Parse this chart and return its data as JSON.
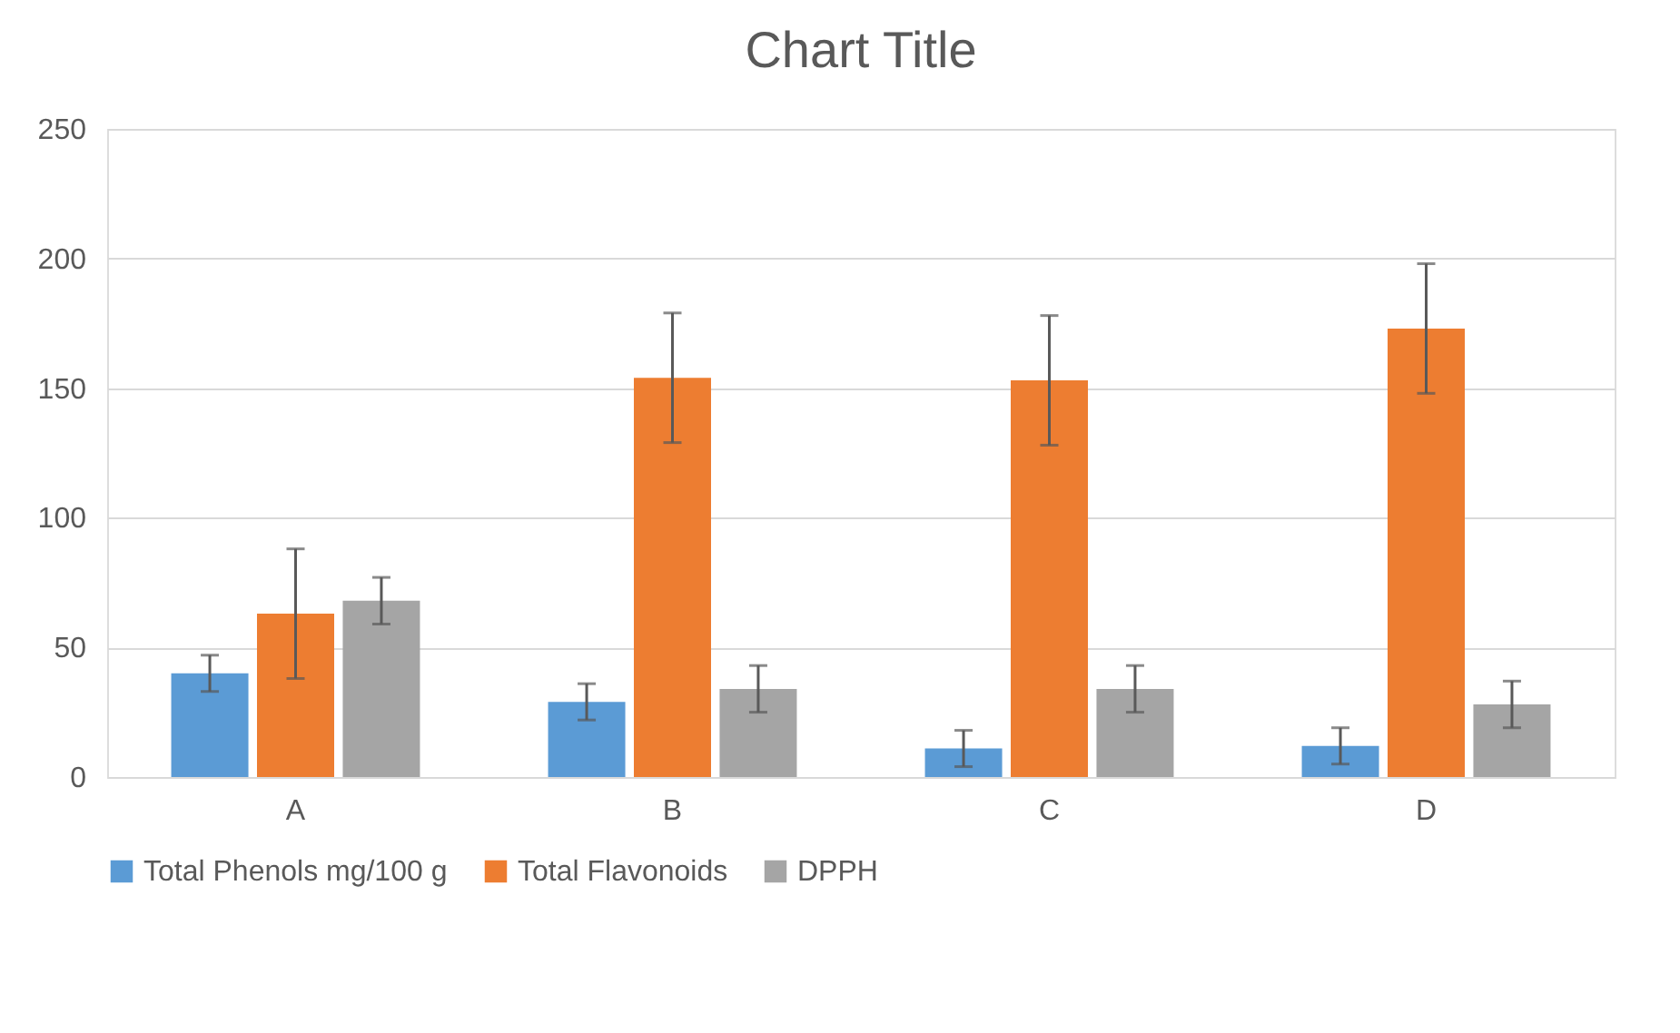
{
  "chart_data": {
    "type": "bar",
    "title": "Chart Title",
    "categories": [
      "A",
      "B",
      "C",
      "D"
    ],
    "series": [
      {
        "name": "Total Phenols mg/100 g",
        "color": "#5b9bd5",
        "values": [
          40,
          29,
          11,
          12
        ],
        "errors": [
          7,
          7,
          7,
          7
        ]
      },
      {
        "name": "Total Flavonoids",
        "color": "#ed7d31",
        "values": [
          63,
          154,
          153,
          173
        ],
        "errors": [
          25,
          25,
          25,
          25
        ]
      },
      {
        "name": "DPPH",
        "color": "#a5a5a5",
        "values": [
          68,
          34,
          34,
          28
        ],
        "errors": [
          9,
          9,
          9,
          9
        ]
      }
    ],
    "ylim": [
      0,
      250
    ],
    "yticks": [
      0,
      50,
      100,
      150,
      200,
      250
    ],
    "grid": "y",
    "legend": "bottom"
  }
}
